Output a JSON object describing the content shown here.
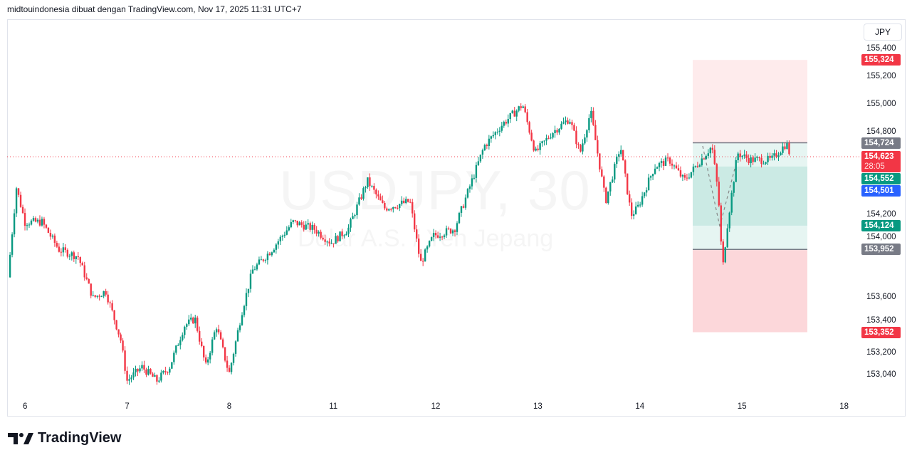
{
  "header": {
    "attribution": "midtouindonesia dibuat dengan TradingView.com, Nov 17, 2025 11:31 UTC+7"
  },
  "watermark": {
    "symbol": "USDJPY, 30",
    "description": "Dolar A.S. / Yen Jepang"
  },
  "currency_button": "JPY",
  "brand": {
    "name": "TradingView"
  },
  "colors": {
    "up": "#089981",
    "down": "#f23645",
    "last_price": "#f23645",
    "bid": "#089981",
    "ask": "#2962ff",
    "gray_label": "#787b86"
  },
  "chart_data": {
    "type": "candlestick",
    "symbol": "USDJPY",
    "interval": "30",
    "y_ticks": [
      "155,400",
      "155,200",
      "155,000",
      "154,800",
      "154,200",
      "154,000",
      "153,600",
      "153,400",
      "153,200",
      "153,040"
    ],
    "x_ticks": [
      "6",
      "7",
      "8",
      "11",
      "12",
      "13",
      "14",
      "15",
      "18"
    ],
    "ylim": [
      152980,
      155480
    ],
    "close_path": [
      [
        "5 20:00",
        153750
      ],
      [
        "5 22:00",
        154400
      ],
      [
        "6 00:00",
        154150
      ],
      [
        "6 04:00",
        154150
      ],
      [
        "6 08:00",
        153950
      ],
      [
        "6 12:30",
        153900
      ],
      [
        "6 16:00",
        153600
      ],
      [
        "6 19:00",
        153650
      ],
      [
        "6 22:30",
        153300
      ],
      [
        "7 00:00",
        153000
      ],
      [
        "7 03:30",
        153100
      ],
      [
        "7 07:00",
        153000
      ],
      [
        "7 10:00",
        153100
      ],
      [
        "7 13:30",
        153400
      ],
      [
        "7 16:00",
        153450
      ],
      [
        "7 18:30",
        153100
      ],
      [
        "7 21:00",
        153400
      ],
      [
        "8 00:00",
        153050
      ],
      [
        "8 03:00",
        153500
      ],
      [
        "8 05:30",
        153800
      ],
      [
        "8 10:00",
        153950
      ],
      [
        "8 15:00",
        154150
      ],
      [
        "8 20:00",
        154100
      ],
      [
        "11 00:00",
        154000
      ],
      [
        "11 04:00",
        154100
      ],
      [
        "11 08:30",
        154450
      ],
      [
        "11 12:30",
        154250
      ],
      [
        "11 18:30",
        154300
      ],
      [
        "11 21:00",
        153850
      ],
      [
        "12 00:00",
        154050
      ],
      [
        "12 05:00",
        154100
      ],
      [
        "12 08:30",
        154400
      ],
      [
        "12 12:00",
        154700
      ],
      [
        "12 16:00",
        154850
      ],
      [
        "12 21:00",
        155000
      ],
      [
        "13 00:00",
        154650
      ],
      [
        "13 04:00",
        154800
      ],
      [
        "13 08:00",
        154900
      ],
      [
        "13 10:30",
        154650
      ],
      [
        "13 13:00",
        154950
      ],
      [
        "13 16:30",
        154300
      ],
      [
        "13 20:00",
        154700
      ],
      [
        "13 22:30",
        154200
      ],
      [
        "14 00:00",
        154250
      ],
      [
        "14 04:00",
        154550
      ],
      [
        "14 07:30",
        154600
      ],
      [
        "14 11:00",
        154450
      ],
      [
        "14 17:30",
        154700
      ],
      [
        "14 19:00",
        154350
      ],
      [
        "14 20:00",
        153800
      ],
      [
        "14 21:00",
        154100
      ],
      [
        "14 23:30",
        154650
      ],
      [
        "15 02:30",
        154600
      ],
      [
        "15 07:30",
        154600
      ],
      [
        "15 11:00",
        154720
      ],
      [
        "15 12:00",
        154623
      ]
    ],
    "last_price": {
      "value": "154,623",
      "countdown": "28:05",
      "price": 154623
    },
    "bid": {
      "value": "154,552",
      "price": 154552
    },
    "ask": {
      "value": "154,501",
      "price": 154501
    },
    "position_tool": {
      "stop_upper": {
        "value": "155,324",
        "price": 155324
      },
      "entry": {
        "value": "154,724",
        "price": 154724
      },
      "target": {
        "value": "154,124",
        "price": 154124
      },
      "entry_lower": {
        "value": "153,952",
        "price": 153952
      },
      "stop_lower": {
        "value": "153,352",
        "price": 153352
      }
    }
  }
}
